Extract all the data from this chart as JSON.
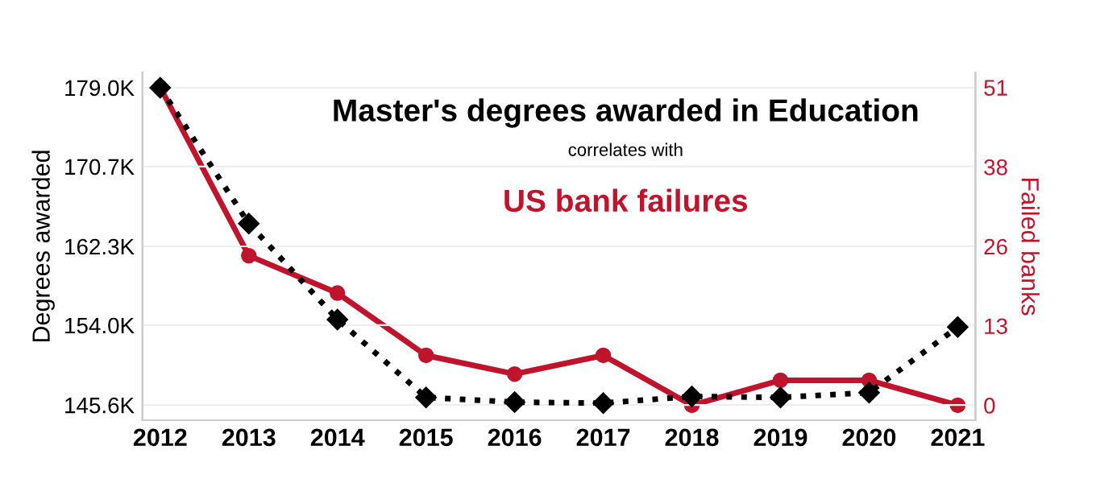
{
  "chart_data": {
    "type": "line",
    "title": "Master's degrees awarded in Education",
    "subtitle": "correlates with",
    "annotations": [
      "US bank failures"
    ],
    "ylabel": "Degrees awarded",
    "y2label": "Failed banks",
    "x": [
      2012,
      2013,
      2014,
      2015,
      2016,
      2017,
      2018,
      2019,
      2020,
      2021
    ],
    "xlim": [
      2011.8,
      2021.2
    ],
    "xticks": [
      2012,
      2013,
      2014,
      2015,
      2016,
      2017,
      2018,
      2019,
      2020,
      2021
    ],
    "ylim": [
      144.0,
      180.6
    ],
    "yticks": [
      {
        "value": 145.6,
        "label": "145.6K"
      },
      {
        "value": 154.0,
        "label": "154.0K"
      },
      {
        "value": 162.3,
        "label": "162.3K"
      },
      {
        "value": 170.7,
        "label": "170.7K"
      },
      {
        "value": 179.0,
        "label": "179.0K"
      }
    ],
    "y2lim": [
      -2.4,
      53.4
    ],
    "y2ticks": [
      0,
      {
        "value": 12.75,
        "label": "13"
      },
      {
        "value": 25.5,
        "label": "26"
      },
      {
        "value": 38.25,
        "label": "38"
      },
      51
    ],
    "grid": "y",
    "legend": false,
    "series": [
      {
        "color": "#000000",
        "marker": "diamond",
        "line_style": "dotted",
        "values": [
          179.0,
          164.7,
          154.6,
          146.4,
          145.9,
          145.8,
          146.5,
          146.4,
          146.9,
          153.8
        ]
      },
      {
        "color": "#c0142d",
        "marker": "circle",
        "line_style": "solid",
        "axis": "y2",
        "values": [
          51,
          24,
          18,
          8,
          5,
          8,
          0,
          4,
          4,
          0
        ]
      }
    ]
  }
}
